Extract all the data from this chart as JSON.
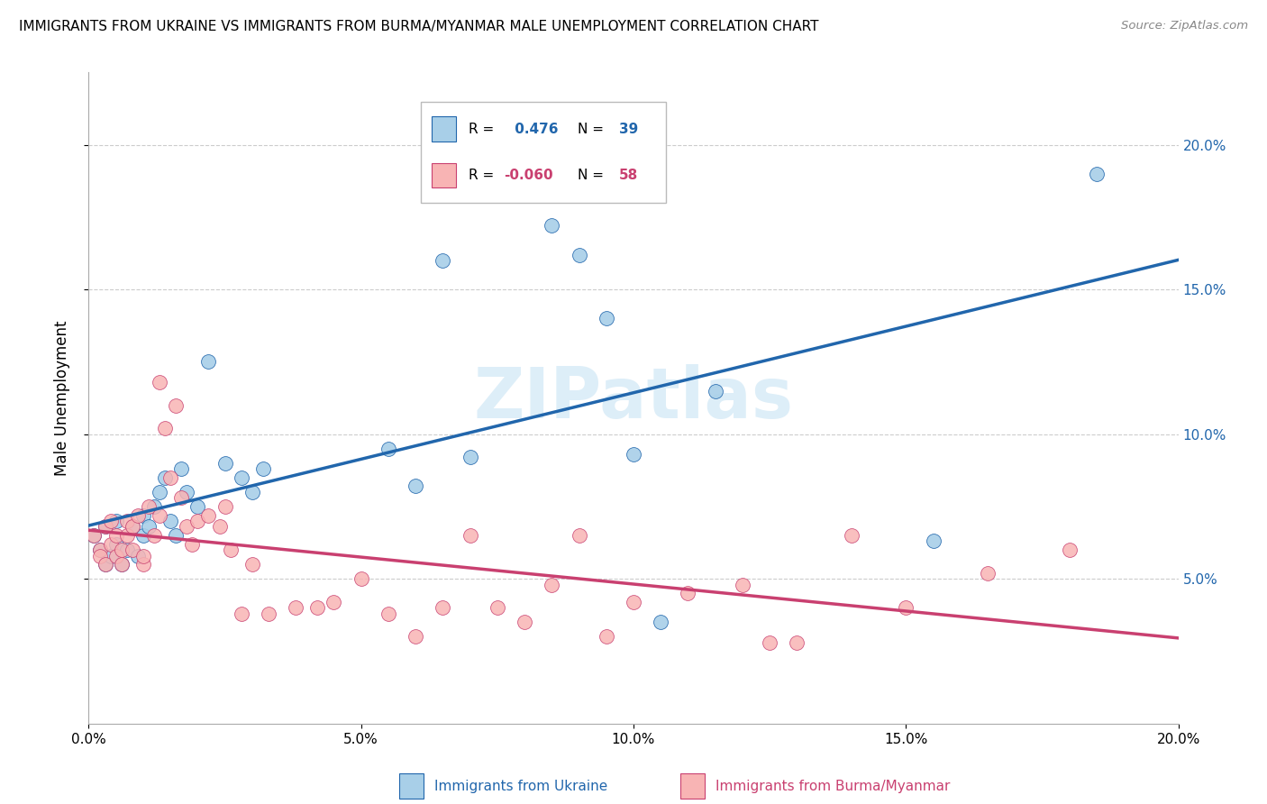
{
  "title": "IMMIGRANTS FROM UKRAINE VS IMMIGRANTS FROM BURMA/MYANMAR MALE UNEMPLOYMENT CORRELATION CHART",
  "source": "Source: ZipAtlas.com",
  "xlabel_ukraine": "Immigrants from Ukraine",
  "xlabel_burma": "Immigrants from Burma/Myanmar",
  "ylabel": "Male Unemployment",
  "xlim": [
    0.0,
    0.2
  ],
  "ylim": [
    0.0,
    0.225
  ],
  "yticks": [
    0.05,
    0.1,
    0.15,
    0.2
  ],
  "xticks": [
    0.0,
    0.05,
    0.1,
    0.15,
    0.2
  ],
  "ukraine_R": 0.476,
  "ukraine_N": 39,
  "burma_R": -0.06,
  "burma_N": 58,
  "ukraine_color": "#a8cfe8",
  "burma_color": "#f8b4b4",
  "ukraine_line_color": "#2166ac",
  "burma_line_color": "#c94070",
  "watermark": "ZIPatlas",
  "ukraine_x": [
    0.001,
    0.002,
    0.003,
    0.003,
    0.004,
    0.005,
    0.005,
    0.006,
    0.007,
    0.008,
    0.009,
    0.01,
    0.01,
    0.011,
    0.012,
    0.013,
    0.014,
    0.015,
    0.016,
    0.017,
    0.018,
    0.02,
    0.022,
    0.025,
    0.028,
    0.03,
    0.032,
    0.055,
    0.06,
    0.065,
    0.07,
    0.085,
    0.09,
    0.095,
    0.1,
    0.105,
    0.115,
    0.155,
    0.185
  ],
  "ukraine_y": [
    0.065,
    0.06,
    0.055,
    0.068,
    0.058,
    0.062,
    0.07,
    0.055,
    0.06,
    0.068,
    0.058,
    0.065,
    0.072,
    0.068,
    0.075,
    0.08,
    0.085,
    0.07,
    0.065,
    0.088,
    0.08,
    0.075,
    0.125,
    0.09,
    0.085,
    0.08,
    0.088,
    0.095,
    0.082,
    0.16,
    0.092,
    0.172,
    0.162,
    0.14,
    0.093,
    0.035,
    0.115,
    0.063,
    0.19
  ],
  "burma_x": [
    0.001,
    0.002,
    0.002,
    0.003,
    0.003,
    0.004,
    0.004,
    0.005,
    0.005,
    0.006,
    0.006,
    0.007,
    0.007,
    0.008,
    0.008,
    0.009,
    0.01,
    0.01,
    0.011,
    0.012,
    0.013,
    0.013,
    0.014,
    0.015,
    0.016,
    0.017,
    0.018,
    0.019,
    0.02,
    0.022,
    0.024,
    0.025,
    0.026,
    0.028,
    0.03,
    0.033,
    0.038,
    0.042,
    0.045,
    0.05,
    0.055,
    0.06,
    0.065,
    0.07,
    0.075,
    0.08,
    0.085,
    0.09,
    0.095,
    0.1,
    0.11,
    0.12,
    0.125,
    0.13,
    0.14,
    0.15,
    0.165,
    0.18
  ],
  "burma_y": [
    0.065,
    0.06,
    0.058,
    0.068,
    0.055,
    0.07,
    0.062,
    0.058,
    0.065,
    0.06,
    0.055,
    0.065,
    0.07,
    0.06,
    0.068,
    0.072,
    0.055,
    0.058,
    0.075,
    0.065,
    0.118,
    0.072,
    0.102,
    0.085,
    0.11,
    0.078,
    0.068,
    0.062,
    0.07,
    0.072,
    0.068,
    0.075,
    0.06,
    0.038,
    0.055,
    0.038,
    0.04,
    0.04,
    0.042,
    0.05,
    0.038,
    0.03,
    0.04,
    0.065,
    0.04,
    0.035,
    0.048,
    0.065,
    0.03,
    0.042,
    0.045,
    0.048,
    0.028,
    0.028,
    0.065,
    0.04,
    0.052,
    0.06
  ]
}
